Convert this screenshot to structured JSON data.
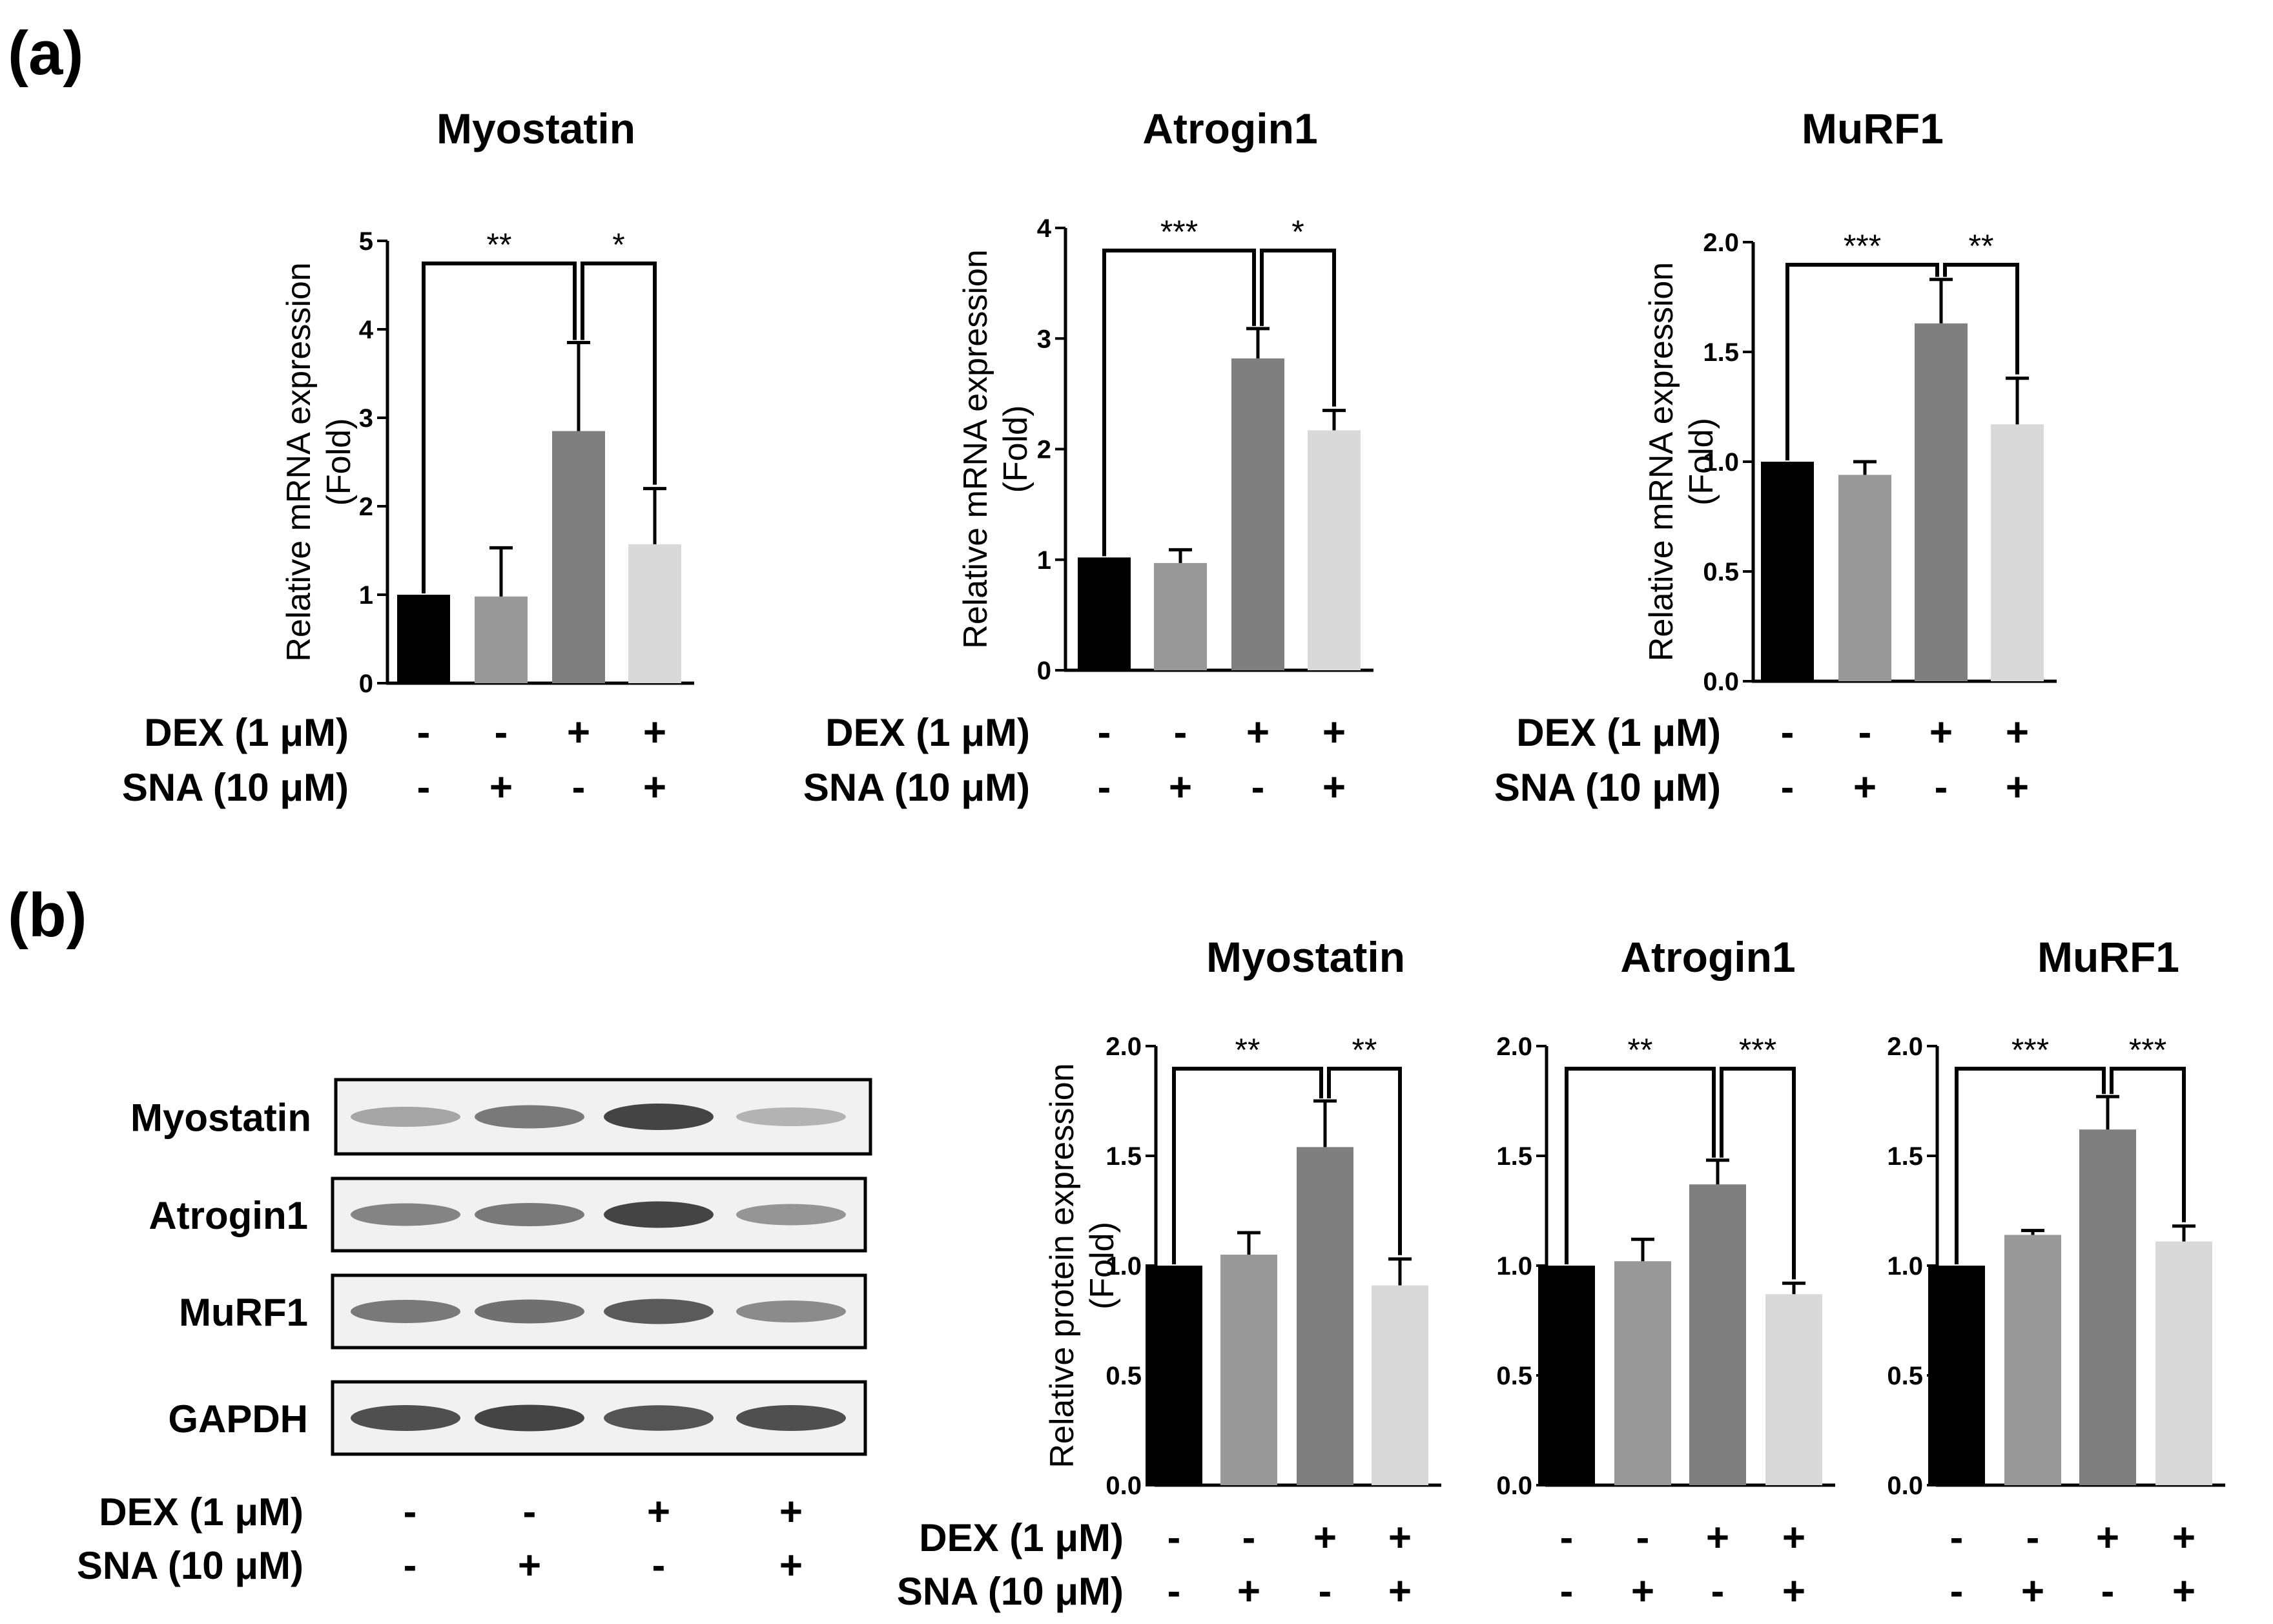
{
  "panels": {
    "a": "(a)",
    "b": "(b)"
  },
  "conditions": [
    {
      "label": "DEX (1 μM)",
      "signs": [
        "-",
        "-",
        "+",
        "+"
      ]
    },
    {
      "label": "SNA (10 μM)",
      "signs": [
        "-",
        "+",
        "-",
        "+"
      ]
    }
  ],
  "western_blot": {
    "proteins": [
      "Myostatin",
      "Atrogin1",
      "MuRF1",
      "GAPDH"
    ]
  },
  "chart_data": [
    {
      "type": "bar",
      "panel": "a",
      "title": "Myostatin",
      "ylabel": "Relative mRNA expression",
      "ylabel2": "(Fold)",
      "categories": [
        "DEX-/SNA-",
        "DEX-/SNA+",
        "DEX+/SNA-",
        "DEX+/SNA+"
      ],
      "values": [
        1.0,
        0.98,
        2.85,
        1.57
      ],
      "errors": [
        0.0,
        0.55,
        1.0,
        0.63
      ],
      "ylim": [
        0,
        5
      ],
      "ticks": [
        0,
        1,
        2,
        3,
        4,
        5
      ],
      "tick_labels": [
        "0",
        "1",
        "2",
        "3",
        "4",
        "5"
      ],
      "significance": [
        {
          "from": 0,
          "to": 2,
          "label": "**"
        },
        {
          "from": 2,
          "to": 3,
          "label": "*"
        }
      ],
      "colors": [
        "#000000",
        "#999999",
        "#7f7f7f",
        "#d9d9d9"
      ]
    },
    {
      "type": "bar",
      "panel": "a",
      "title": "Atrogin1",
      "ylabel": "Relative mRNA expression",
      "ylabel2": "(Fold)",
      "categories": [
        "DEX-/SNA-",
        "DEX-/SNA+",
        "DEX+/SNA-",
        "DEX+/SNA+"
      ],
      "values": [
        1.02,
        0.97,
        2.82,
        2.17
      ],
      "errors": [
        0.0,
        0.12,
        0.27,
        0.18
      ],
      "ylim": [
        0,
        4
      ],
      "ticks": [
        0,
        1,
        2,
        3,
        4
      ],
      "tick_labels": [
        "0",
        "1",
        "2",
        "3",
        "4"
      ],
      "significance": [
        {
          "from": 0,
          "to": 2,
          "label": "***"
        },
        {
          "from": 2,
          "to": 3,
          "label": "*"
        }
      ],
      "colors": [
        "#000000",
        "#999999",
        "#7f7f7f",
        "#d9d9d9"
      ]
    },
    {
      "type": "bar",
      "panel": "a",
      "title": "MuRF1",
      "ylabel": "Relative mRNA expression",
      "ylabel2": "(Fold)",
      "categories": [
        "DEX-/SNA-",
        "DEX-/SNA+",
        "DEX+/SNA-",
        "DEX+/SNA+"
      ],
      "values": [
        1.0,
        0.94,
        1.63,
        1.17
      ],
      "errors": [
        0.0,
        0.06,
        0.2,
        0.21
      ],
      "ylim": [
        0,
        2
      ],
      "ticks": [
        0,
        0.5,
        1,
        1.5,
        2
      ],
      "tick_labels": [
        "0.0",
        "0.5",
        "1.0",
        "1.5",
        "2.0"
      ],
      "significance": [
        {
          "from": 0,
          "to": 2,
          "label": "***"
        },
        {
          "from": 2,
          "to": 3,
          "label": "**"
        }
      ],
      "colors": [
        "#000000",
        "#999999",
        "#7f7f7f",
        "#d9d9d9"
      ]
    },
    {
      "type": "bar",
      "panel": "b",
      "title": "Myostatin",
      "ylabel": "Relative protein expression",
      "ylabel2": "(Fold)",
      "categories": [
        "DEX-/SNA-",
        "DEX-/SNA+",
        "DEX+/SNA-",
        "DEX+/SNA+"
      ],
      "values": [
        1.0,
        1.05,
        1.54,
        0.91
      ],
      "errors": [
        0.0,
        0.1,
        0.21,
        0.12
      ],
      "ylim": [
        0,
        2
      ],
      "ticks": [
        0,
        0.5,
        1,
        1.5,
        2
      ],
      "tick_labels": [
        "0.0",
        "0.5",
        "1.0",
        "1.5",
        "2.0"
      ],
      "significance": [
        {
          "from": 0,
          "to": 2,
          "label": "**"
        },
        {
          "from": 2,
          "to": 3,
          "label": "**"
        }
      ],
      "colors": [
        "#000000",
        "#999999",
        "#7f7f7f",
        "#d9d9d9"
      ]
    },
    {
      "type": "bar",
      "panel": "b",
      "title": "Atrogin1",
      "ylabel": "",
      "ylabel2": "",
      "categories": [
        "DEX-/SNA-",
        "DEX-/SNA+",
        "DEX+/SNA-",
        "DEX+/SNA+"
      ],
      "values": [
        1.0,
        1.02,
        1.37,
        0.87
      ],
      "errors": [
        0.0,
        0.1,
        0.11,
        0.05
      ],
      "ylim": [
        0,
        2
      ],
      "ticks": [
        0,
        0.5,
        1,
        1.5,
        2
      ],
      "tick_labels": [
        "0.0",
        "0.5",
        "1.0",
        "1.5",
        "2.0"
      ],
      "significance": [
        {
          "from": 0,
          "to": 2,
          "label": "**"
        },
        {
          "from": 2,
          "to": 3,
          "label": "***"
        }
      ],
      "colors": [
        "#000000",
        "#999999",
        "#7f7f7f",
        "#d9d9d9"
      ]
    },
    {
      "type": "bar",
      "panel": "b",
      "title": "MuRF1",
      "ylabel": "",
      "ylabel2": "",
      "categories": [
        "DEX-/SNA-",
        "DEX-/SNA+",
        "DEX+/SNA-",
        "DEX+/SNA+"
      ],
      "values": [
        1.0,
        1.14,
        1.62,
        1.11
      ],
      "errors": [
        0.0,
        0.02,
        0.15,
        0.07
      ],
      "ylim": [
        0,
        2
      ],
      "ticks": [
        0,
        0.5,
        1,
        1.5,
        2
      ],
      "tick_labels": [
        "0.0",
        "0.5",
        "1.0",
        "1.5",
        "2.0"
      ],
      "significance": [
        {
          "from": 0,
          "to": 2,
          "label": "***"
        },
        {
          "from": 2,
          "to": 3,
          "label": "***"
        }
      ],
      "colors": [
        "#000000",
        "#999999",
        "#7f7f7f",
        "#d9d9d9"
      ]
    }
  ]
}
